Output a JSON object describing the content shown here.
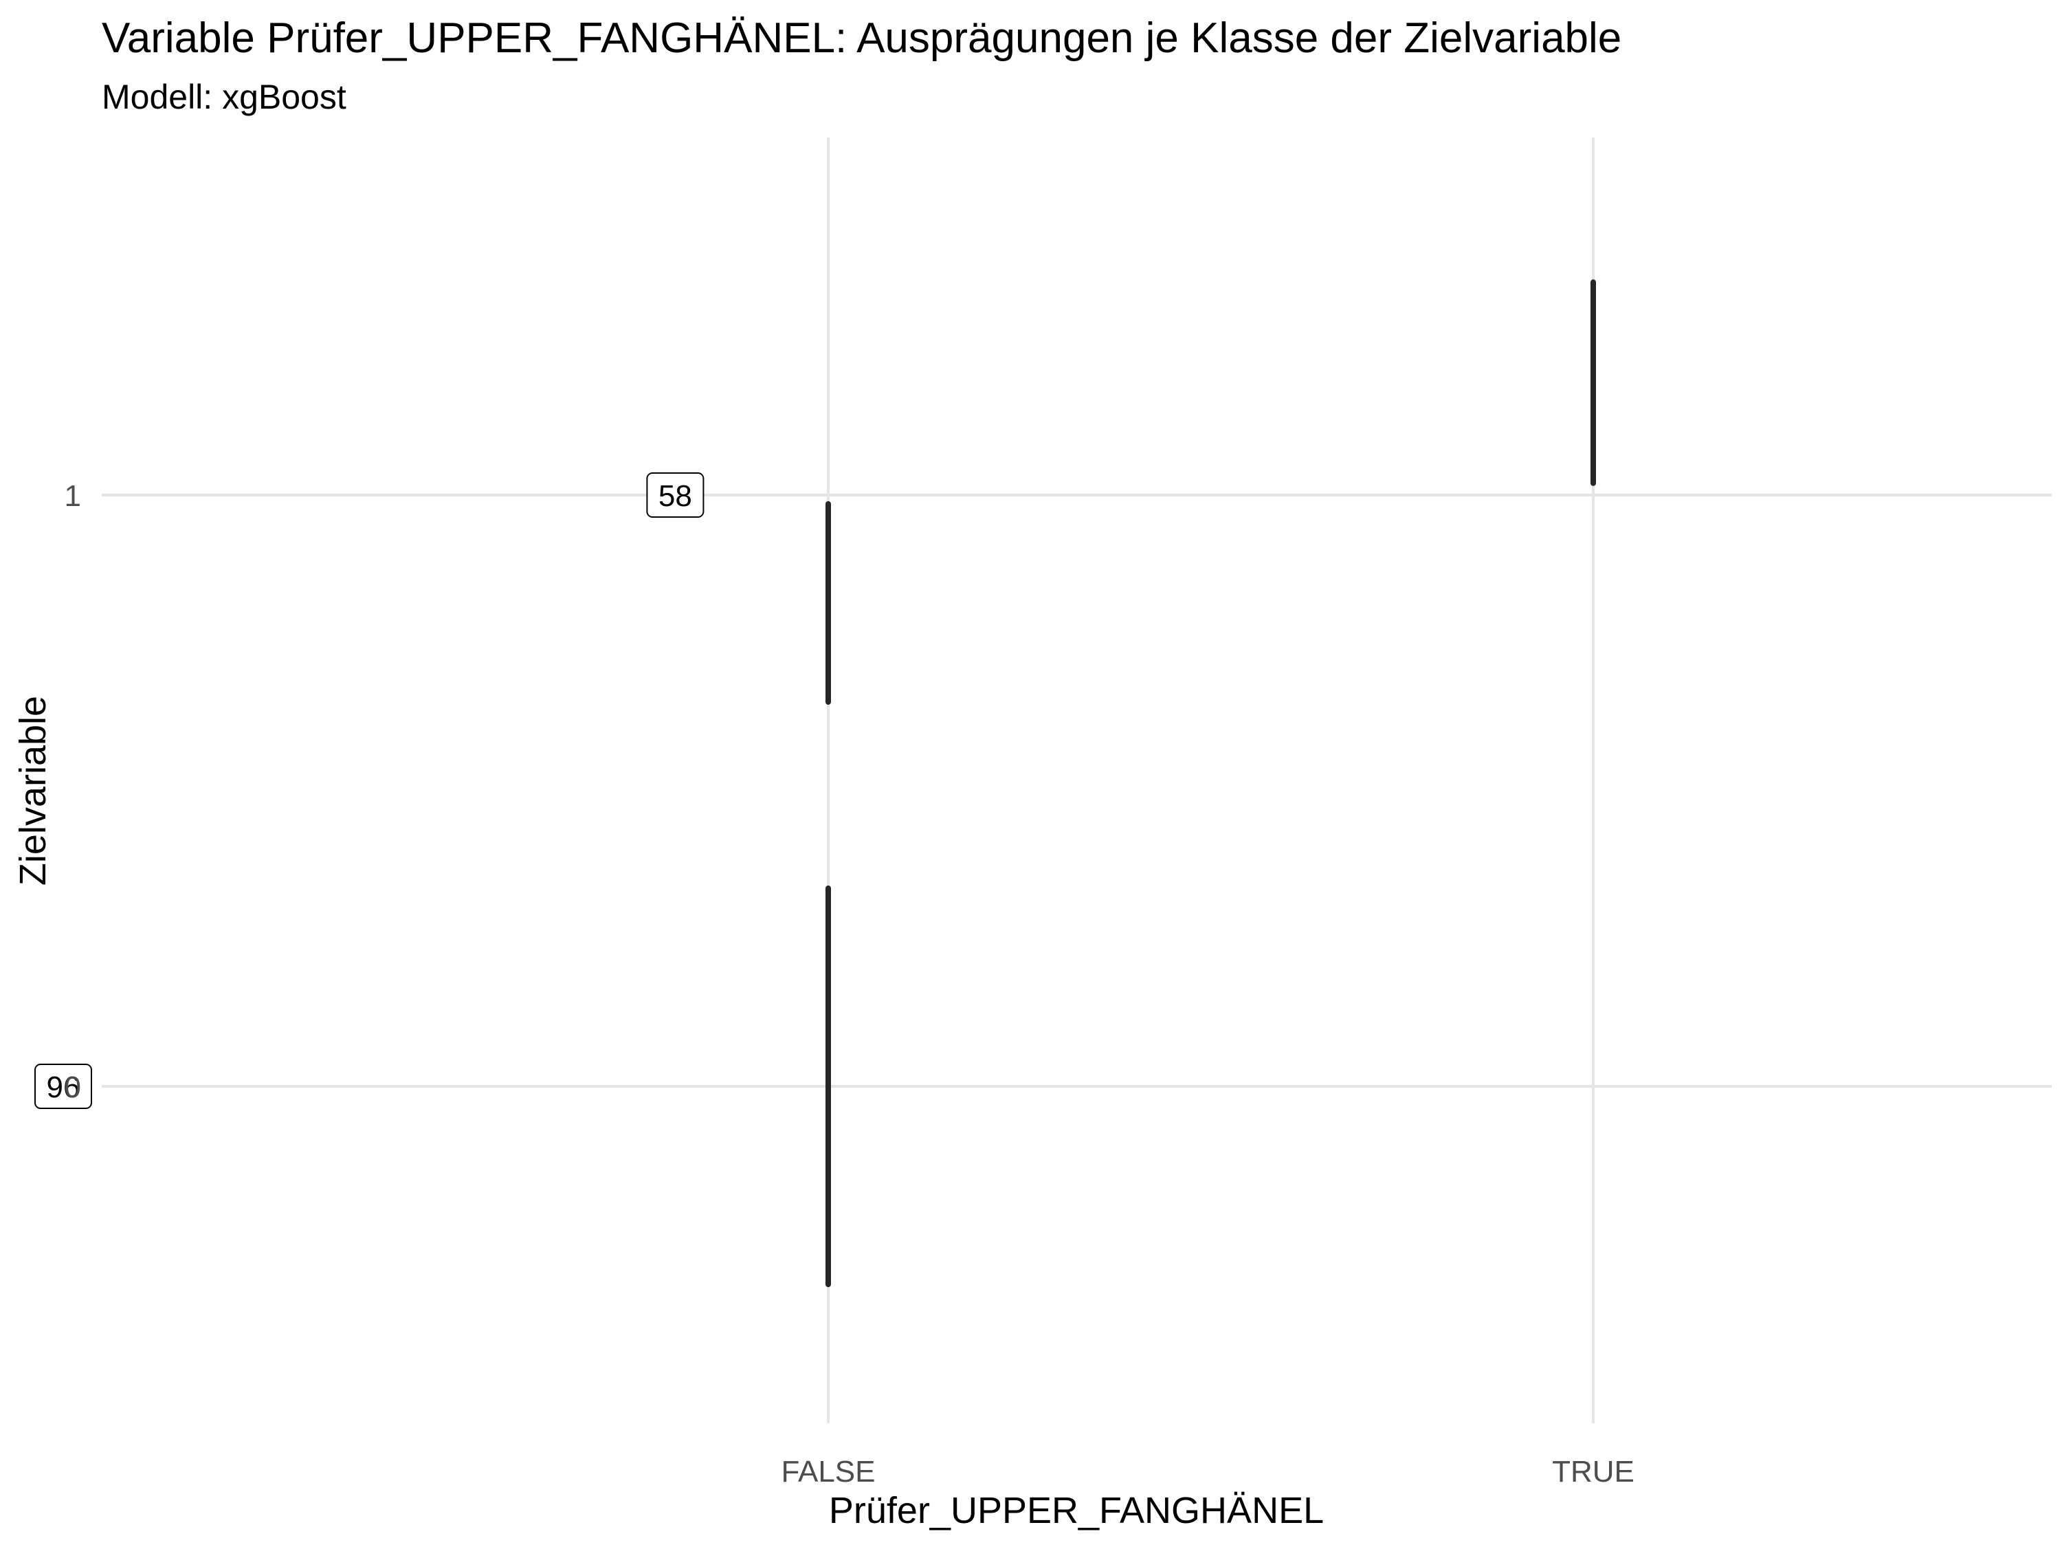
{
  "chart_data": {
    "type": "violin",
    "title": "Variable Prüfer_UPPER_FANGHÄNEL: Ausprägungen je Klasse der Zielvariable",
    "subtitle": "Modell: xgBoost",
    "xlabel": "Prüfer_UPPER_FANGHÄNEL",
    "ylabel": "Zielvariable",
    "categories": [
      "FALSE",
      "TRUE"
    ],
    "y_ticks": [
      "0",
      "1"
    ],
    "ylim": [
      -0.57,
      1.6
    ],
    "grid": true,
    "series": [
      {
        "values": [
          {
            "category": "FALSE",
            "class": "0",
            "y_min": -0.335,
            "y_max": 0.335
          },
          {
            "category": "FALSE",
            "class": "1",
            "y_min": 0.65,
            "y_max": 0.985
          },
          {
            "category": "TRUE",
            "class": "1",
            "y_min": 1.02,
            "y_max": 1.36
          }
        ]
      }
    ],
    "count_labels": [
      {
        "text": "96",
        "category": "FALSE",
        "y": 0,
        "x_offset": -1.0
      },
      {
        "text": "58",
        "category": "FALSE",
        "y": 1,
        "x_offset": -0.2
      }
    ]
  }
}
